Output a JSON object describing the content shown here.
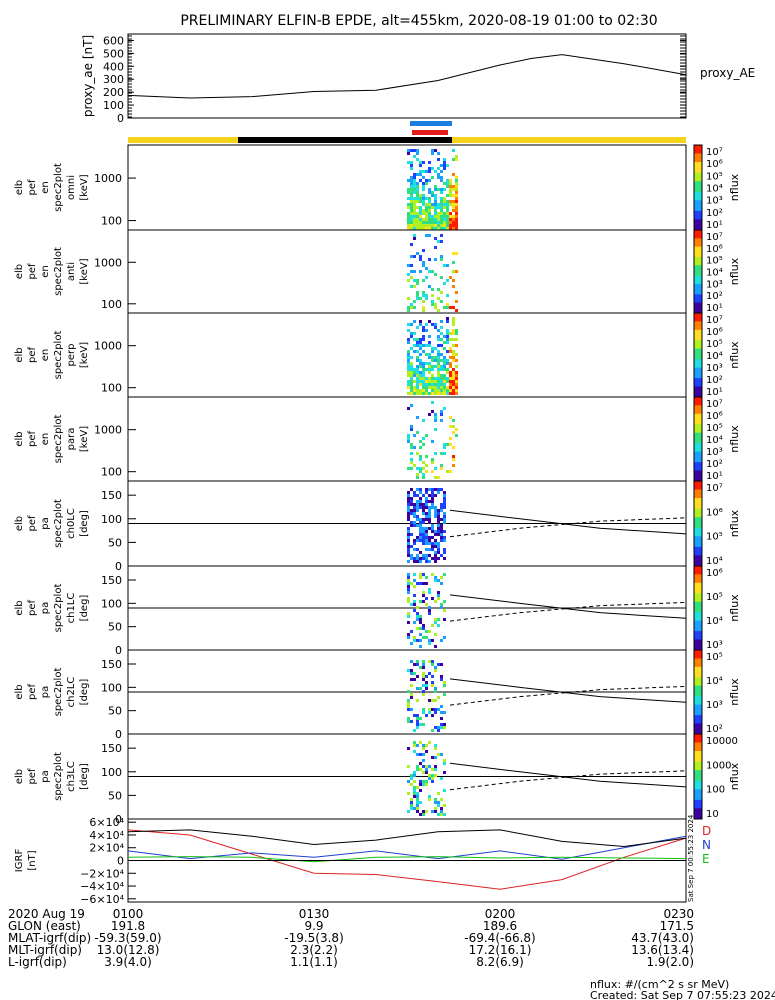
{
  "title": "PRELIMINARY ELFIN-B EPDE, alt=455km, 2020-08-19 01:00 to 02:30",
  "colors": {
    "background": "#ffffff",
    "axis": "#000000",
    "gold": "#f5d31c",
    "dark": "#000000",
    "blue": "#1a7fe0",
    "red": "#e21b1b",
    "D": "#e02020",
    "N": "#2040d0",
    "E": "#10c010",
    "curve": "#000000"
  },
  "panels": [
    {
      "kind": "proxy",
      "ylabel": [
        "proxy_ae",
        "[nT]"
      ],
      "ticks": [
        "600",
        "500",
        "400",
        "300",
        "200",
        "100",
        "0"
      ],
      "side_label": "proxy_AE"
    },
    {
      "kind": "spec",
      "ylabel": [
        "elb",
        "pef",
        "en",
        "spec2plot",
        "omni",
        "[keV]"
      ],
      "ticks": [
        "1000",
        "100"
      ],
      "cbar_ticks": [
        "10⁷",
        "10⁶",
        "10⁵",
        "10⁴",
        "10³",
        "10²",
        "10¹"
      ],
      "cbar_label": "nflux"
    },
    {
      "kind": "spec",
      "ylabel": [
        "elb",
        "pef",
        "en",
        "spec2plot",
        "anti",
        "[keV]"
      ],
      "ticks": [
        "1000",
        "100"
      ],
      "cbar_ticks": [
        "10⁷",
        "10⁶",
        "10⁵",
        "10⁴",
        "10³",
        "10²",
        "10¹"
      ],
      "cbar_label": "nflux"
    },
    {
      "kind": "spec",
      "ylabel": [
        "elb",
        "pef",
        "en",
        "spec2plot",
        "perp",
        "[keV]"
      ],
      "ticks": [
        "1000",
        "100"
      ],
      "cbar_ticks": [
        "10⁷",
        "10⁶",
        "10⁵",
        "10⁴",
        "10³",
        "10²",
        "10¹"
      ],
      "cbar_label": "nflux"
    },
    {
      "kind": "spec",
      "ylabel": [
        "elb",
        "pef",
        "en",
        "spec2plot",
        "para",
        "[keV]"
      ],
      "ticks": [
        "1000",
        "100"
      ],
      "cbar_ticks": [
        "10⁷",
        "10⁶",
        "10⁵",
        "10⁴",
        "10³",
        "10²",
        "10¹"
      ],
      "cbar_label": "nflux"
    },
    {
      "kind": "pa",
      "ylabel": [
        "elb",
        "pef",
        "pa",
        "spec2plot",
        "ch0LC",
        "[deg]"
      ],
      "ticks": [
        "150",
        "100",
        "50",
        "0"
      ],
      "cbar_ticks": [
        "10⁷",
        "10⁶",
        "10⁵",
        "10⁴"
      ],
      "cbar_label": "nflux"
    },
    {
      "kind": "pa",
      "ylabel": [
        "elb",
        "pef",
        "pa",
        "spec2plot",
        "ch1LC",
        "[deg]"
      ],
      "ticks": [
        "150",
        "100",
        "50",
        "0"
      ],
      "cbar_ticks": [
        "10⁶",
        "10⁵",
        "10⁴",
        "10³"
      ],
      "cbar_label": "nflux"
    },
    {
      "kind": "pa",
      "ylabel": [
        "elb",
        "pef",
        "pa",
        "spec2plot",
        "ch2LC",
        "[deg]"
      ],
      "ticks": [
        "150",
        "100",
        "50",
        "0"
      ],
      "cbar_ticks": [
        "10⁵",
        "10⁴",
        "10³",
        "10²"
      ],
      "cbar_label": "nflux"
    },
    {
      "kind": "pa",
      "ylabel": [
        "elb",
        "pef",
        "pa",
        "spec2plot",
        "ch3LC",
        "[deg]"
      ],
      "ticks": [
        "150",
        "100",
        "50",
        "0"
      ],
      "cbar_ticks": [
        "10000",
        "1000",
        "100",
        "10"
      ],
      "cbar_label": "nflux"
    },
    {
      "kind": "igrf",
      "ylabel": [
        "IGRF",
        "[nT]"
      ],
      "ticks": [
        "6×10⁴",
        "4×10⁴",
        "2×10⁴",
        "0",
        "−2×10⁴",
        "−4×10⁴",
        "−6×10⁴"
      ],
      "legend": [
        "D",
        "N",
        "E"
      ],
      "stamp": "Sat Sep  7 00:55:23 2024"
    }
  ],
  "footer": {
    "rows": [
      [
        "2020 Aug 19",
        "0100",
        "0130",
        "0200",
        "0230"
      ],
      [
        "GLON (east)",
        "191.8",
        "9.9",
        "189.6",
        "171.5"
      ],
      [
        "MLAT-igrf(dip)",
        "-59.3(59.0)",
        "-19.5(3.8)",
        "-69.4(-66.8)",
        "43.7(43.0)"
      ],
      [
        "MLT-igrf(dip)",
        "13.0(12.8)",
        "2.3(2.2)",
        "17.2(16.1)",
        "13.6(13.4)"
      ],
      [
        "L-igrf(dip)",
        "3.9(4.0)",
        "1.1(1.1)",
        "8.2(6.9)",
        "1.9(2.0)"
      ]
    ],
    "unit_note": "nflux: #/(cm^2 s sr MeV)",
    "created": "Created: Sat Sep  7 07:55:23 2024"
  },
  "chart_data": [
    {
      "type": "line",
      "title": "",
      "ylabel": "proxy_ae [nT]",
      "xlabel": "",
      "ylim": [
        0,
        650
      ],
      "x": [
        "01:00",
        "01:10",
        "01:20",
        "01:30",
        "01:40",
        "01:50",
        "02:00",
        "02:05",
        "02:10",
        "02:20",
        "02:30"
      ],
      "series": [
        {
          "name": "proxy_AE",
          "values": [
            175,
            155,
            165,
            205,
            215,
            290,
            410,
            460,
            490,
            420,
            335
          ]
        }
      ]
    },
    {
      "type": "heatmap",
      "title": "",
      "ylabel": "elb pef en spec2plot omni [keV]",
      "ylim": [
        60,
        6000
      ],
      "x_active": [
        "01:45",
        "01:53"
      ]
    },
    {
      "type": "heatmap",
      "title": "",
      "ylabel": "elb pef en spec2plot anti [keV]",
      "ylim": [
        60,
        6000
      ],
      "x_active": [
        "01:45",
        "01:53"
      ]
    },
    {
      "type": "heatmap",
      "title": "",
      "ylabel": "elb pef en spec2plot perp [keV]",
      "ylim": [
        60,
        6000
      ],
      "x_active": [
        "01:45",
        "01:53"
      ]
    },
    {
      "type": "heatmap",
      "title": "",
      "ylabel": "elb pef en spec2plot para [keV]",
      "ylim": [
        60,
        6000
      ],
      "x_active": [
        "01:45",
        "01:53"
      ]
    },
    {
      "type": "heatmap",
      "title": "",
      "ylabel": "elb pef pa spec2plot ch0LC [deg]",
      "ylim": [
        0,
        180
      ],
      "x_active": [
        "01:45",
        "01:50"
      ]
    },
    {
      "type": "heatmap",
      "title": "",
      "ylabel": "elb pef pa spec2plot ch1LC [deg]",
      "ylim": [
        0,
        180
      ],
      "x_active": [
        "01:45",
        "01:50"
      ]
    },
    {
      "type": "heatmap",
      "title": "",
      "ylabel": "elb pef pa spec2plot ch2LC [deg]",
      "ylim": [
        0,
        180
      ],
      "x_active": [
        "01:45",
        "01:50"
      ]
    },
    {
      "type": "heatmap",
      "title": "",
      "ylabel": "elb pef pa spec2plot ch3LC [deg]",
      "ylim": [
        0,
        180
      ],
      "x_active": [
        "01:45",
        "01:50"
      ]
    },
    {
      "type": "line",
      "title": "",
      "ylabel": "IGRF [nT]",
      "ylim": [
        -65000,
        65000
      ],
      "x": [
        "01:00",
        "01:10",
        "01:20",
        "01:30",
        "01:40",
        "01:50",
        "02:00",
        "02:10",
        "02:20",
        "02:30"
      ],
      "series": [
        {
          "name": "D",
          "values": [
            48000,
            40000,
            10000,
            -20000,
            -22000,
            -33000,
            -45000,
            -30000,
            5000,
            35000
          ]
        },
        {
          "name": "N",
          "values": [
            15000,
            3000,
            12000,
            5000,
            15000,
            3000,
            15000,
            2000,
            20000,
            38000
          ]
        },
        {
          "name": "E",
          "values": [
            5000,
            6000,
            5000,
            -2000,
            5000,
            6000,
            4000,
            5000,
            4000,
            3000
          ]
        },
        {
          "values": [
            45000,
            48000,
            38000,
            25000,
            32000,
            45000,
            48000,
            30000,
            22000,
            35000
          ]
        }
      ]
    }
  ]
}
